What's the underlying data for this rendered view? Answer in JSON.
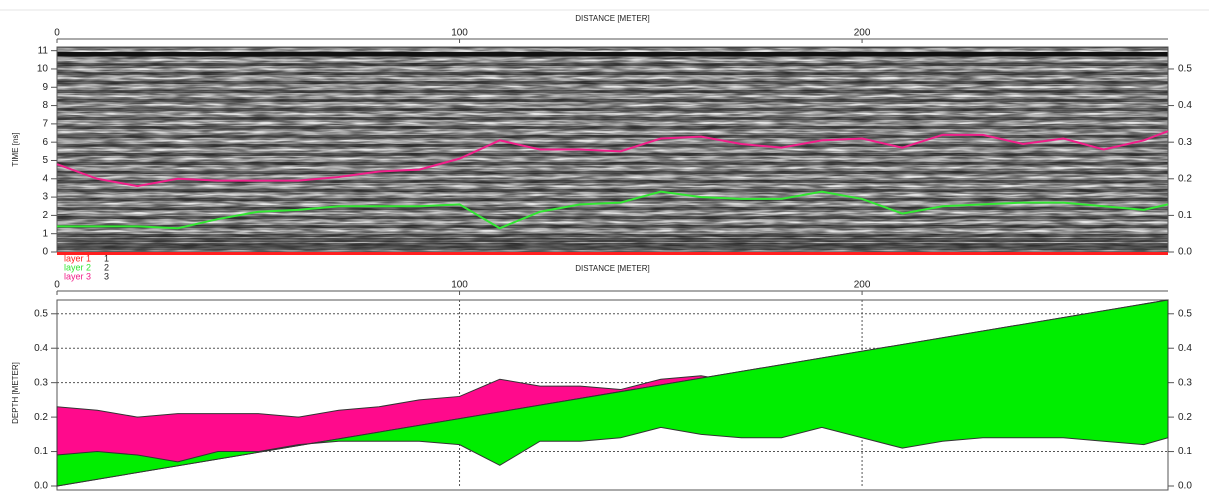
{
  "chart_data": [
    {
      "type": "line",
      "x_label": "DISTANCE [METER]",
      "y_label": "TIME [ns]",
      "x": [
        0,
        10,
        20,
        30,
        40,
        50,
        60,
        70,
        80,
        90,
        100,
        110,
        120,
        130,
        140,
        150,
        160,
        170,
        180,
        190,
        200,
        210,
        220,
        230,
        240,
        250,
        260,
        270,
        276
      ],
      "xlim": [
        0,
        276
      ],
      "xticks": [
        0,
        100,
        200
      ],
      "ylim": [
        0,
        11.2
      ],
      "yticks": [
        0,
        1,
        2,
        3,
        4,
        5,
        6,
        7,
        8,
        9,
        10,
        11
      ],
      "y2lim": [
        0,
        0.56
      ],
      "y2ticks": [
        {
          "value": 0,
          "label": "0.0"
        },
        0.1,
        0.2,
        0.3,
        0.4,
        0.5
      ],
      "series": [
        {
          "name": "layer 1",
          "id": "1",
          "color": "#ff2020",
          "values": [
            0,
            0,
            0,
            0,
            0,
            0,
            0,
            0,
            0,
            0,
            0,
            0,
            0,
            0,
            0,
            0,
            0,
            0,
            0,
            0,
            0,
            0,
            0,
            0,
            0,
            0,
            0,
            0,
            0
          ]
        },
        {
          "name": "layer 2",
          "id": "2",
          "color": "#33e633",
          "values": [
            1.4,
            1.4,
            1.4,
            1.3,
            1.8,
            2.2,
            2.3,
            2.5,
            2.5,
            2.5,
            2.6,
            1.3,
            2.2,
            2.6,
            2.7,
            3.3,
            3.0,
            2.9,
            2.9,
            3.3,
            2.9,
            2.1,
            2.5,
            2.6,
            2.7,
            2.7,
            2.5,
            2.3,
            2.6
          ]
        },
        {
          "name": "layer 3",
          "id": "3",
          "color": "#f0208a",
          "values": [
            4.8,
            4.0,
            3.6,
            4.0,
            3.9,
            3.9,
            3.9,
            4.1,
            4.4,
            4.5,
            5.1,
            6.1,
            5.6,
            5.6,
            5.5,
            6.2,
            6.3,
            5.9,
            5.7,
            6.1,
            6.2,
            5.7,
            6.4,
            6.4,
            5.9,
            6.2,
            5.6,
            6.1,
            6.6
          ]
        }
      ]
    },
    {
      "type": "area",
      "x_label": "DISTANCE [METER]",
      "y_label": "DEPTH [METER]",
      "x": [
        0,
        10,
        20,
        30,
        40,
        50,
        60,
        70,
        80,
        90,
        100,
        110,
        120,
        130,
        140,
        150,
        160,
        170,
        180,
        190,
        200,
        210,
        220,
        230,
        240,
        250,
        260,
        270,
        276
      ],
      "xlim": [
        0,
        276
      ],
      "xticks": [
        0,
        100,
        200
      ],
      "ylim": [
        0,
        0.54
      ],
      "yticks": [
        {
          "value": 0,
          "label": "0.0"
        },
        0.1,
        0.2,
        0.3,
        0.4,
        0.5
      ],
      "grid": true,
      "series": [
        {
          "color": "#ff0a8c",
          "values": [
            0.23,
            0.22,
            0.2,
            0.21,
            0.21,
            0.21,
            0.2,
            0.22,
            0.23,
            0.25,
            0.26,
            0.31,
            0.29,
            0.29,
            0.28,
            0.31,
            0.32,
            0.3,
            0.29,
            0.31,
            0.32,
            0.29,
            0.32,
            0.32,
            0.3,
            0.31,
            0.29,
            0.3,
            0.33
          ]
        },
        {
          "color": "#00ee00",
          "values": [
            0.09,
            0.1,
            0.09,
            0.07,
            0.1,
            0.1,
            0.12,
            0.13,
            0.13,
            0.13,
            0.12,
            0.06,
            0.13,
            0.13,
            0.14,
            0.17,
            0.15,
            0.14,
            0.14,
            0.17,
            0.14,
            0.11,
            0.13,
            0.14,
            0.14,
            0.14,
            0.13,
            0.12,
            0.14
          ]
        }
      ]
    }
  ]
}
